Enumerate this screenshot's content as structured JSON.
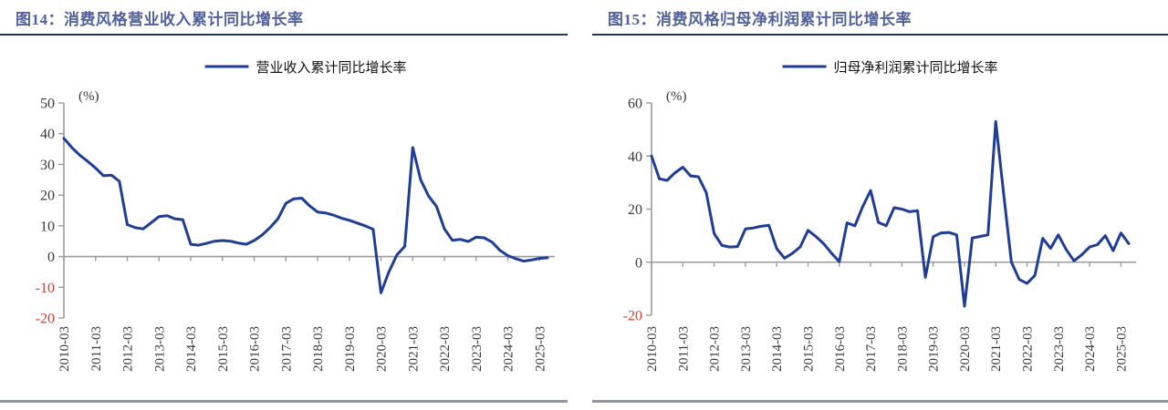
{
  "colors": {
    "line": "#203d96",
    "title": "#53619b",
    "title_rule": "#1f3864",
    "bottom_rule": "#8e98a4",
    "axis": "#9b9b9b",
    "tick_label": "#3a3a3a",
    "negative_tick_label": "#de3b2f",
    "legend_text": "#111111",
    "unit_label": "#333333"
  },
  "figures": [
    {
      "title": "图14：消费风格营业收入累计同比增长率",
      "legend_label": "营业收入累计同比增长率",
      "unit": "(%)"
    },
    {
      "title": "图15：消费风格归母净利润累计同比增长率",
      "legend_label": "归母净利润累计同比增长率",
      "unit": "(%)"
    }
  ],
  "chart_data": [
    {
      "type": "line",
      "title": "消费风格营业收入累计同比增长率",
      "series_name": "营业收入累计同比增长率",
      "unit": "%",
      "legend_position": "top",
      "grid": false,
      "ylim": [
        -20,
        50
      ],
      "yticks": [
        50,
        40,
        30,
        20,
        10,
        0,
        -10,
        -20
      ],
      "x_tick_labels": [
        "2010-03",
        "2011-03",
        "2012-03",
        "2013-03",
        "2014-03",
        "2015-03",
        "2016-03",
        "2017-03",
        "2018-03",
        "2019-03",
        "2020-03",
        "2021-03",
        "2022-03",
        "2023-03",
        "2024-03",
        "2025-03"
      ],
      "x": [
        "2010-03",
        "2010-06",
        "2010-09",
        "2010-12",
        "2011-03",
        "2011-06",
        "2011-09",
        "2011-12",
        "2012-03",
        "2012-06",
        "2012-09",
        "2012-12",
        "2013-03",
        "2013-06",
        "2013-09",
        "2013-12",
        "2014-03",
        "2014-06",
        "2014-09",
        "2014-12",
        "2015-03",
        "2015-06",
        "2015-09",
        "2015-12",
        "2016-03",
        "2016-06",
        "2016-09",
        "2016-12",
        "2017-03",
        "2017-06",
        "2017-09",
        "2017-12",
        "2018-03",
        "2018-06",
        "2018-09",
        "2018-12",
        "2019-03",
        "2019-06",
        "2019-09",
        "2019-12",
        "2020-03",
        "2020-06",
        "2020-09",
        "2020-12",
        "2021-03",
        "2021-06",
        "2021-09",
        "2021-12",
        "2022-03",
        "2022-06",
        "2022-09",
        "2022-12",
        "2023-03",
        "2023-06",
        "2023-09",
        "2023-12",
        "2024-03",
        "2024-06",
        "2024-09",
        "2024-12",
        "2025-03",
        "2025-06"
      ],
      "values": [
        38.5,
        35.5,
        33.0,
        31.0,
        28.8,
        26.3,
        26.5,
        24.5,
        10.4,
        9.4,
        9.0,
        11.0,
        13.0,
        13.3,
        12.3,
        12.0,
        4.0,
        3.7,
        4.3,
        5.0,
        5.2,
        5.0,
        4.4,
        4.0,
        5.2,
        7.0,
        9.4,
        12.3,
        17.3,
        18.8,
        19.0,
        16.5,
        14.5,
        14.2,
        13.5,
        12.5,
        11.8,
        10.9,
        10.0,
        8.9,
        -11.8,
        -5.0,
        0.5,
        3.3,
        35.5,
        25.0,
        19.7,
        16.3,
        9.0,
        5.3,
        5.6,
        4.9,
        6.3,
        6.1,
        4.7,
        2.0,
        0.3,
        -0.7,
        -1.5,
        -1.1,
        -0.6,
        -0.4
      ]
    },
    {
      "type": "line",
      "title": "消费风格归母净利润累计同比增长率",
      "series_name": "归母净利润累计同比增长率",
      "unit": "%",
      "legend_position": "top",
      "grid": false,
      "ylim": [
        -20,
        60
      ],
      "yticks": [
        60,
        40,
        20,
        0,
        -20
      ],
      "x_tick_labels": [
        "2010-03",
        "2011-03",
        "2012-03",
        "2013-03",
        "2014-03",
        "2015-03",
        "2016-03",
        "2017-03",
        "2018-03",
        "2019-03",
        "2020-03",
        "2021-03",
        "2022-03",
        "2023-03",
        "2024-03",
        "2025-03"
      ],
      "x": [
        "2010-03",
        "2010-06",
        "2010-09",
        "2010-12",
        "2011-03",
        "2011-06",
        "2011-09",
        "2011-12",
        "2012-03",
        "2012-06",
        "2012-09",
        "2012-12",
        "2013-03",
        "2013-06",
        "2013-09",
        "2013-12",
        "2014-03",
        "2014-06",
        "2014-09",
        "2014-12",
        "2015-03",
        "2015-06",
        "2015-09",
        "2015-12",
        "2016-03",
        "2016-06",
        "2016-09",
        "2016-12",
        "2017-03",
        "2017-06",
        "2017-09",
        "2017-12",
        "2018-03",
        "2018-06",
        "2018-09",
        "2018-12",
        "2019-03",
        "2019-06",
        "2019-09",
        "2019-12",
        "2020-03",
        "2020-06",
        "2020-09",
        "2020-12",
        "2021-03",
        "2021-06",
        "2021-09",
        "2021-12",
        "2022-03",
        "2022-06",
        "2022-09",
        "2022-12",
        "2023-03",
        "2023-06",
        "2023-09",
        "2023-12",
        "2024-03",
        "2024-06",
        "2024-09",
        "2024-12",
        "2025-03",
        "2025-06"
      ],
      "values": [
        40.0,
        31.4,
        30.8,
        33.7,
        35.8,
        32.5,
        32.2,
        26.2,
        10.8,
        6.3,
        5.7,
        5.9,
        12.5,
        12.9,
        13.5,
        13.9,
        5.1,
        1.5,
        3.3,
        5.7,
        12.0,
        9.7,
        7.0,
        3.4,
        0.2,
        14.8,
        13.7,
        21.0,
        27.0,
        15.0,
        13.7,
        20.5,
        20.0,
        19.0,
        19.4,
        -5.7,
        9.6,
        11.0,
        11.2,
        10.3,
        -16.6,
        9.1,
        9.7,
        10.3,
        53.0,
        26.0,
        0.0,
        -6.5,
        -8.0,
        -5.0,
        9.0,
        5.2,
        10.3,
        4.8,
        0.5,
        2.8,
        5.7,
        6.6,
        10.0,
        4.3,
        11.0,
        7.0
      ]
    }
  ]
}
